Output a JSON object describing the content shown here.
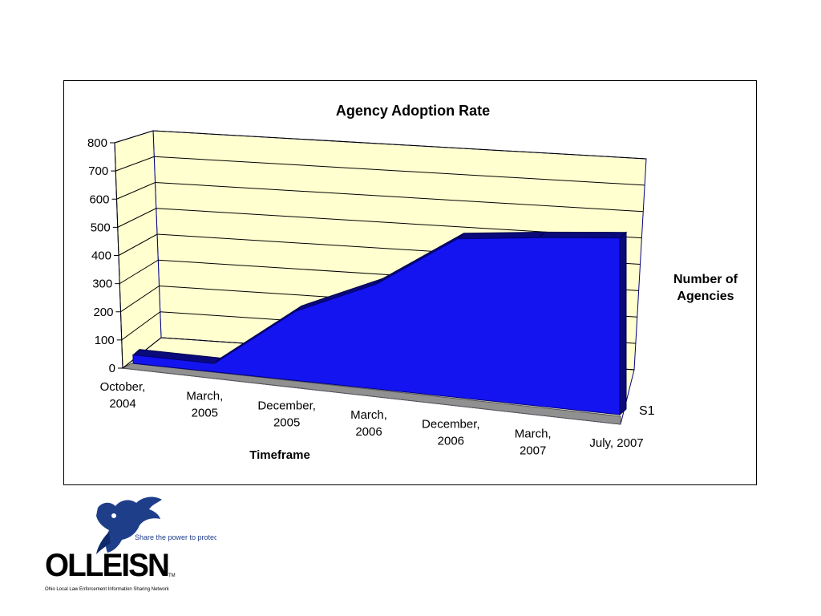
{
  "chart_data": {
    "type": "area",
    "title": "Agency Adoption Rate",
    "categories": [
      "October, 2004",
      "March, 2005",
      "December, 2005",
      "March, 2006",
      "December, 2006",
      "March, 2007",
      "July, 2007"
    ],
    "series": [
      {
        "name": "S1",
        "values": [
          30,
          30,
          250,
          380,
          575,
          610,
          640
        ]
      }
    ],
    "xlabel": "Timeframe",
    "ylabel": "Number of Agencies",
    "ylim": [
      0,
      800
    ],
    "yticks": [
      "0",
      "100",
      "200",
      "300",
      "400",
      "500",
      "600",
      "700",
      "800"
    ],
    "grid": true,
    "legend": "none",
    "colors": {
      "series": "#1414f0",
      "series_dark": "#0a0a7a",
      "wall": "#ffffd0",
      "floor": "#909090"
    }
  },
  "logo": {
    "brand": "OLLEISN",
    "tagline": "Share the power to protect.",
    "full_name": "Ohio Local Law Enforcement Information Sharing Network",
    "trademark": "TM"
  }
}
